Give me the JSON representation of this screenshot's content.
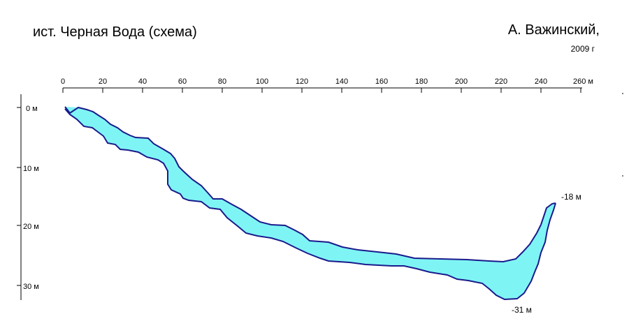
{
  "title": "ист. Черная Вода (схема)",
  "author": "А. Важинский,",
  "year": "2009 г",
  "colors": {
    "water": "#7ff4f4",
    "wall": "#1a1a8c",
    "axis": "#000000"
  },
  "distance_axis": {
    "ticks": [
      "0",
      "20",
      "40",
      "60",
      "80",
      "100",
      "120",
      "140",
      "160",
      "180",
      "200",
      "220",
      "240",
      "260 м"
    ]
  },
  "depth_axis": {
    "ticks": [
      "0 м",
      "10 м",
      "20 м",
      "30 м"
    ]
  },
  "annotations": {
    "end_depth": "-18 м",
    "max_depth": "-31 м"
  }
}
